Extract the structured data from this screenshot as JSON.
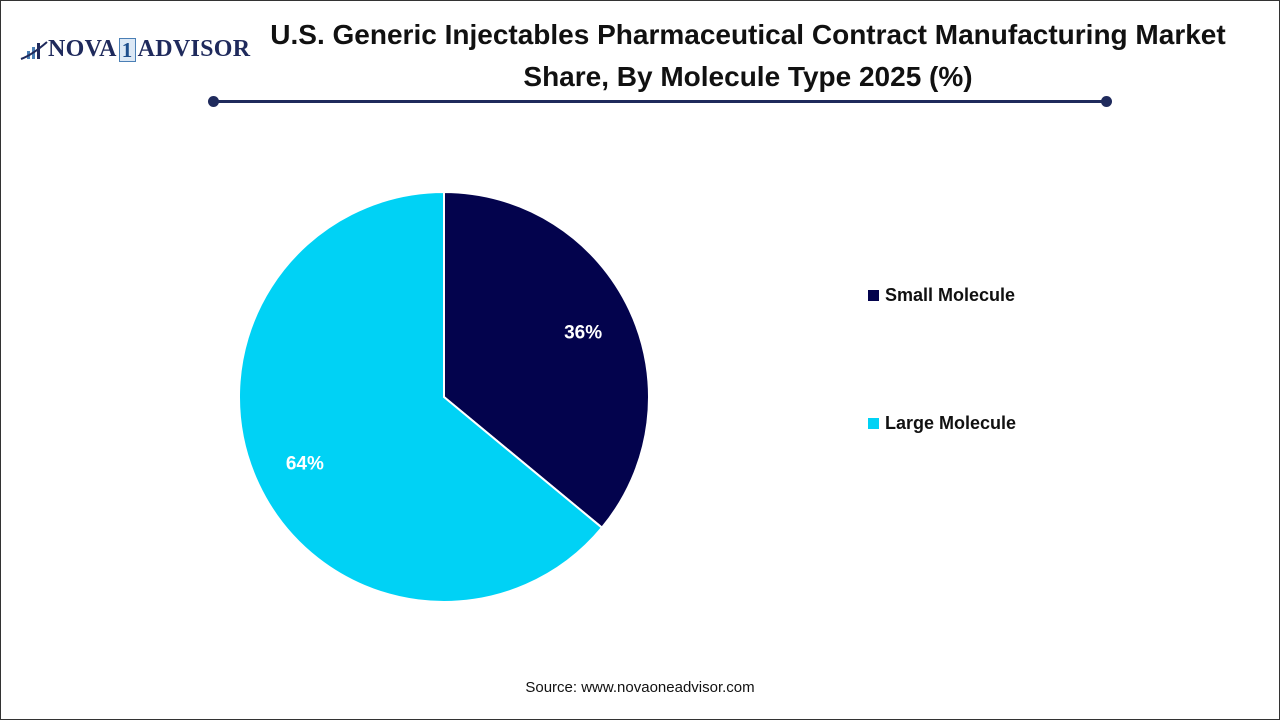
{
  "logo": {
    "text_left": "NOVA",
    "text_one": "1",
    "text_right": "ADVISOR"
  },
  "chart_data": {
    "type": "pie",
    "title": "U.S. Generic Injectables Pharmaceutical Contract Manufacturing Market Share, By Molecule Type 2025 (%)",
    "slices": [
      {
        "name": "Small Molecule",
        "value": 36,
        "label": "36%",
        "color": "#03034d"
      },
      {
        "name": "Large Molecule",
        "value": 64,
        "label": "64%",
        "color": "#00d2f5"
      }
    ],
    "legend_position": "right"
  },
  "source": "Source: www.novaoneadvisor.com"
}
